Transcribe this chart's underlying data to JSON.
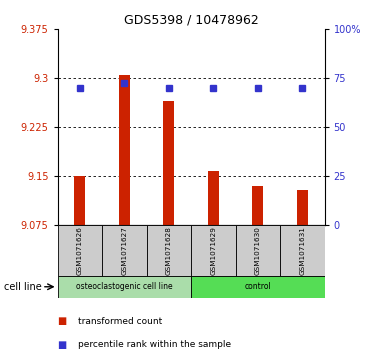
{
  "title": "GDS5398 / 10478962",
  "samples": [
    "GSM1071626",
    "GSM1071627",
    "GSM1071628",
    "GSM1071629",
    "GSM1071630",
    "GSM1071631"
  ],
  "bar_values": [
    9.15,
    9.305,
    9.265,
    9.157,
    9.135,
    9.128
  ],
  "bar_base": 9.075,
  "percentile_values": [
    9.285,
    9.293,
    9.285,
    9.285,
    9.285,
    9.285
  ],
  "ylim_min": 9.075,
  "ylim_max": 9.375,
  "yticks_left": [
    9.075,
    9.15,
    9.225,
    9.3,
    9.375
  ],
  "yticks_right_vals": [
    0,
    25,
    50,
    75,
    100
  ],
  "yticks_right_labels": [
    "0",
    "25",
    "50",
    "75",
    "100%"
  ],
  "bar_color": "#cc2200",
  "percentile_color": "#3333cc",
  "cell_line_groups": [
    {
      "label": "osteoclastogenic cell line",
      "start": 0,
      "end": 3,
      "color": "#aaddaa"
    },
    {
      "label": "control",
      "start": 3,
      "end": 6,
      "color": "#55dd55"
    }
  ],
  "cell_line_label": "cell line",
  "legend_items": [
    {
      "label": "transformed count",
      "color": "#cc2200"
    },
    {
      "label": "percentile rank within the sample",
      "color": "#3333cc"
    }
  ],
  "bg_color": "#ffffff",
  "label_box_color": "#cccccc",
  "bar_width": 0.25
}
